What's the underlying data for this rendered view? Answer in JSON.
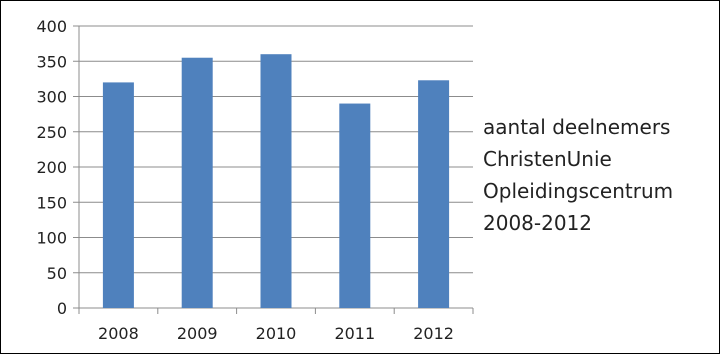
{
  "chart_data": {
    "type": "bar",
    "categories": [
      "2008",
      "2009",
      "2010",
      "2011",
      "2012"
    ],
    "series": [
      {
        "values": [
          320,
          355,
          360,
          290,
          323
        ]
      }
    ],
    "legend": "right",
    "grid": true,
    "ylim": [
      0,
      400
    ],
    "yticks": [
      0,
      50,
      100,
      150,
      200,
      250,
      300,
      350,
      400
    ],
    "title": "",
    "xlabel": "",
    "ylabel": ""
  },
  "legend_text": [
    "aantal deelnemers",
    "ChristenUnie",
    "Opleidingscentrum",
    "2008-2012"
  ],
  "colors": {
    "bar": "#4f81bd",
    "grid": "#8c8c8c",
    "axis": "#8c8c8c",
    "text": "#222222",
    "frame": "#000000"
  }
}
